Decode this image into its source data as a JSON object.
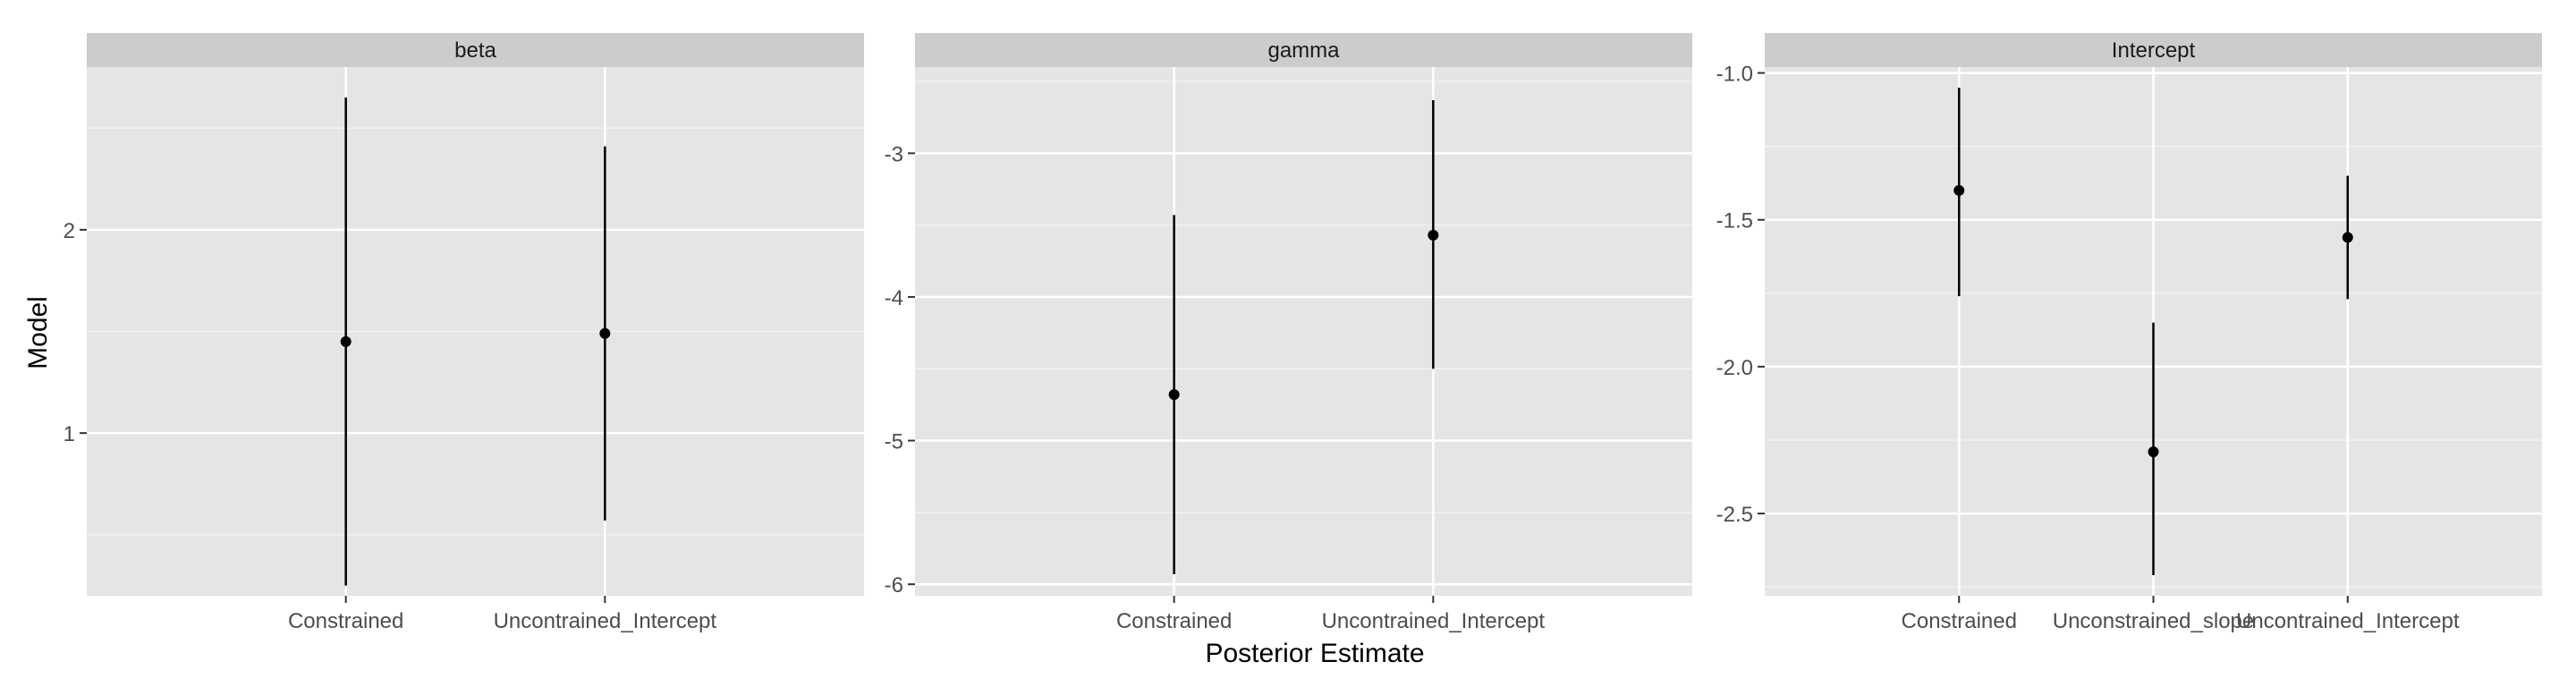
{
  "colors": {
    "panel_bg": "#e5e5e5",
    "strip_bg": "#cccccc",
    "grid_major": "#ffffff",
    "grid_minor": "#f2f2f2",
    "tick_text": "#4d4d4d",
    "axis_title": "#000000",
    "mark": "#000000"
  },
  "chart_data": {
    "type": "pointrange",
    "xlabel": "Posterior Estimate",
    "ylabel": "Model",
    "facets": [
      {
        "strip": "beta",
        "categories": [
          "Constrained",
          "Uncontrained_Intercept"
        ],
        "points": [
          {
            "category": "Constrained",
            "estimate": 1.45,
            "lower": 0.25,
            "upper": 2.65
          },
          {
            "category": "Uncontrained_Intercept",
            "estimate": 1.49,
            "lower": 0.57,
            "upper": 2.41
          }
        ],
        "ylim": [
          0.2,
          2.8
        ],
        "yticks": [
          1,
          2
        ],
        "ytick_labels": [
          "1",
          "2"
        ]
      },
      {
        "strip": "gamma",
        "categories": [
          "Constrained",
          "Uncontrained_Intercept"
        ],
        "points": [
          {
            "category": "Constrained",
            "estimate": -4.68,
            "lower": -5.93,
            "upper": -3.43
          },
          {
            "category": "Uncontrained_Intercept",
            "estimate": -3.57,
            "lower": -4.5,
            "upper": -2.63
          }
        ],
        "ylim": [
          -6.08,
          -2.4
        ],
        "yticks": [
          -6,
          -5,
          -4,
          -3
        ],
        "ytick_labels": [
          "-6",
          "-5",
          "-4",
          "-3"
        ]
      },
      {
        "strip": "Intercept",
        "categories": [
          "Constrained",
          "Unconstrained_slope",
          "Uncontrained_Intercept"
        ],
        "points": [
          {
            "category": "Constrained",
            "estimate": -1.4,
            "lower": -1.76,
            "upper": -1.05
          },
          {
            "category": "Unconstrained_slope",
            "estimate": -2.29,
            "lower": -2.71,
            "upper": -1.85
          },
          {
            "category": "Uncontrained_Intercept",
            "estimate": -1.56,
            "lower": -1.77,
            "upper": -1.35
          }
        ],
        "ylim": [
          -2.78,
          -0.98
        ],
        "yticks": [
          -2.5,
          -2.0,
          -1.5,
          -1.0
        ],
        "ytick_labels": [
          "-2.5",
          "-2.0",
          "-1.5",
          "-1.0"
        ]
      }
    ]
  }
}
